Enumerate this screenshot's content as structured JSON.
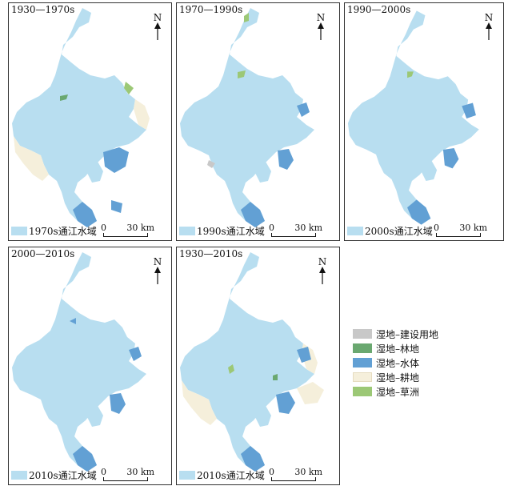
{
  "panels": [
    {
      "title": "1930—1970s",
      "water_label": "1970s通江水域"
    },
    {
      "title": "1970—1990s",
      "water_label": "1990s通江水域"
    },
    {
      "title": "1990—2000s",
      "water_label": "2000s通江水域"
    },
    {
      "title": "2000—2010s",
      "water_label": "2010s通江水域"
    },
    {
      "title": "1930—2010s",
      "water_label": "2010s通江水域"
    }
  ],
  "north_label": "N",
  "scale": {
    "start": "0",
    "end": "30 km"
  },
  "legend": [
    {
      "label": "湿地–建设用地",
      "color": "#c8c8c8"
    },
    {
      "label": "湿地–林地",
      "color": "#6aa870"
    },
    {
      "label": "湿地–水体",
      "color": "#62a0d4"
    },
    {
      "label": "湿地–耕地",
      "color": "#f5efdb"
    },
    {
      "label": "湿地–草洲",
      "color": "#9cc876"
    }
  ],
  "colors": {
    "open_water": "#b8def0",
    "wetland_water": "#62a0d4",
    "forest": "#6aa870",
    "farmland": "#f5efdb",
    "grass": "#9cc876",
    "built": "#c8c8c8"
  }
}
